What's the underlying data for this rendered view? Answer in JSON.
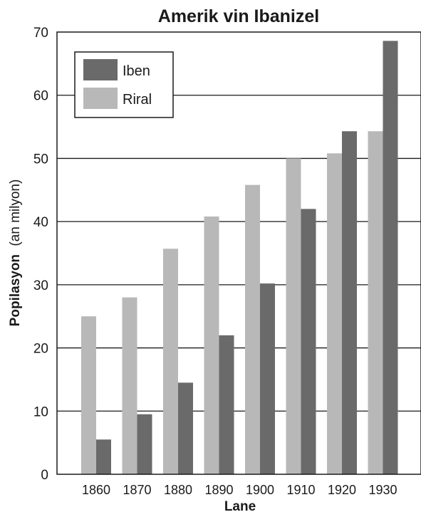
{
  "chart_data": {
    "type": "bar",
    "title": "Amerik vin Ibanizel",
    "xlabel": "Lane",
    "ylabel_bold": "Popilasyon",
    "ylabel_rest": "(an milyon)",
    "categories": [
      "1860",
      "1870",
      "1880",
      "1890",
      "1900",
      "1910",
      "1920",
      "1930"
    ],
    "series": [
      {
        "name": "Riral",
        "color": "#b8b8b8",
        "values": [
          25,
          28,
          35.7,
          40.8,
          45.8,
          50,
          50.8,
          54.3
        ]
      },
      {
        "name": "Iben",
        "color": "#6a6a6a",
        "values": [
          5.5,
          9.5,
          14.5,
          22,
          30.2,
          42,
          54.3,
          68.6
        ]
      }
    ],
    "ylim": [
      0,
      70
    ],
    "yticks": [
      "0",
      "10",
      "20",
      "30",
      "40",
      "50",
      "60",
      "70"
    ],
    "grid": true,
    "legend": {
      "position": "top-left",
      "items": [
        {
          "label": "Iben",
          "color": "#6a6a6a"
        },
        {
          "label": "Riral",
          "color": "#b8b8b8"
        }
      ]
    }
  }
}
